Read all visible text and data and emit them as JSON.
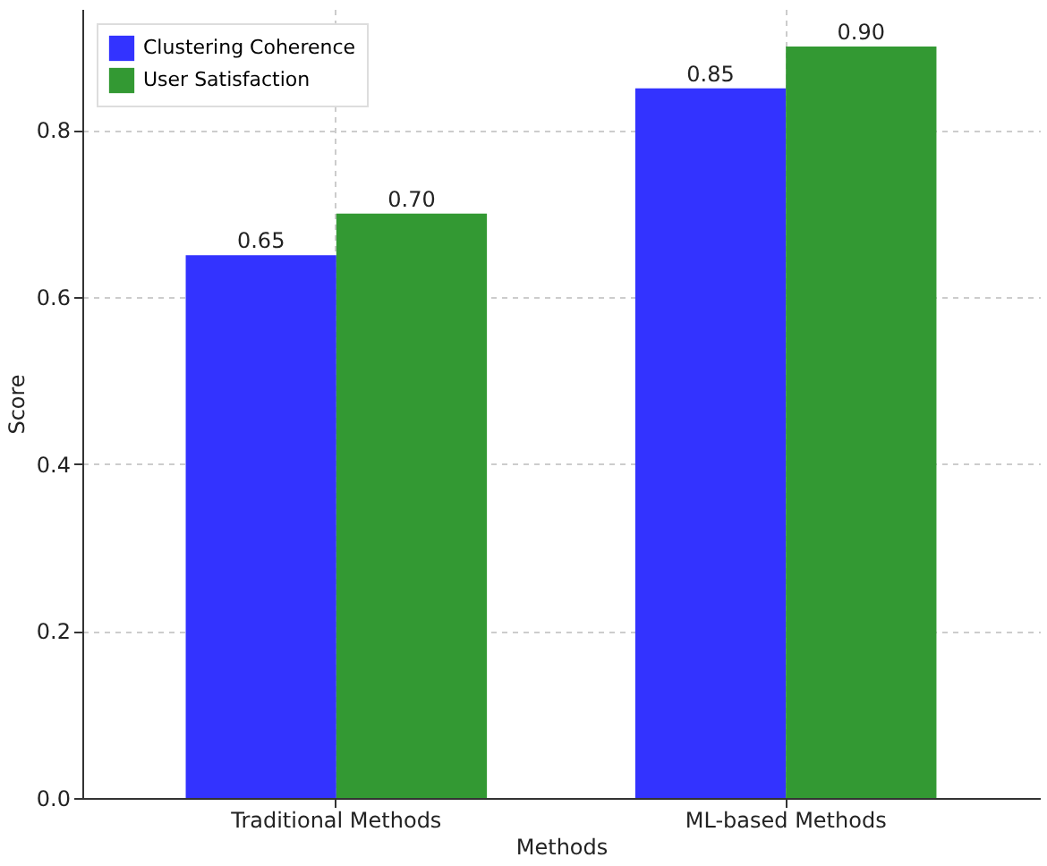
{
  "chart_data": {
    "type": "bar",
    "xlabel": "Methods",
    "ylabel": "Score",
    "categories": [
      "Traditional Methods",
      "ML-based Methods"
    ],
    "series": [
      {
        "name": "Clustering Coherence",
        "color": "#3333ff",
        "values": [
          0.65,
          0.85
        ],
        "value_labels": [
          "0.65",
          "0.85"
        ]
      },
      {
        "name": "User Satisfaction",
        "color": "#339933",
        "values": [
          0.7,
          0.9
        ],
        "value_labels": [
          "0.70",
          "0.90"
        ]
      }
    ],
    "ylim": [
      0,
      0.945
    ],
    "yticks": [
      {
        "value": 0,
        "label": "0.0"
      },
      0.2,
      0.4,
      0.6,
      0.8
    ],
    "grid": true,
    "legend": "top left"
  }
}
